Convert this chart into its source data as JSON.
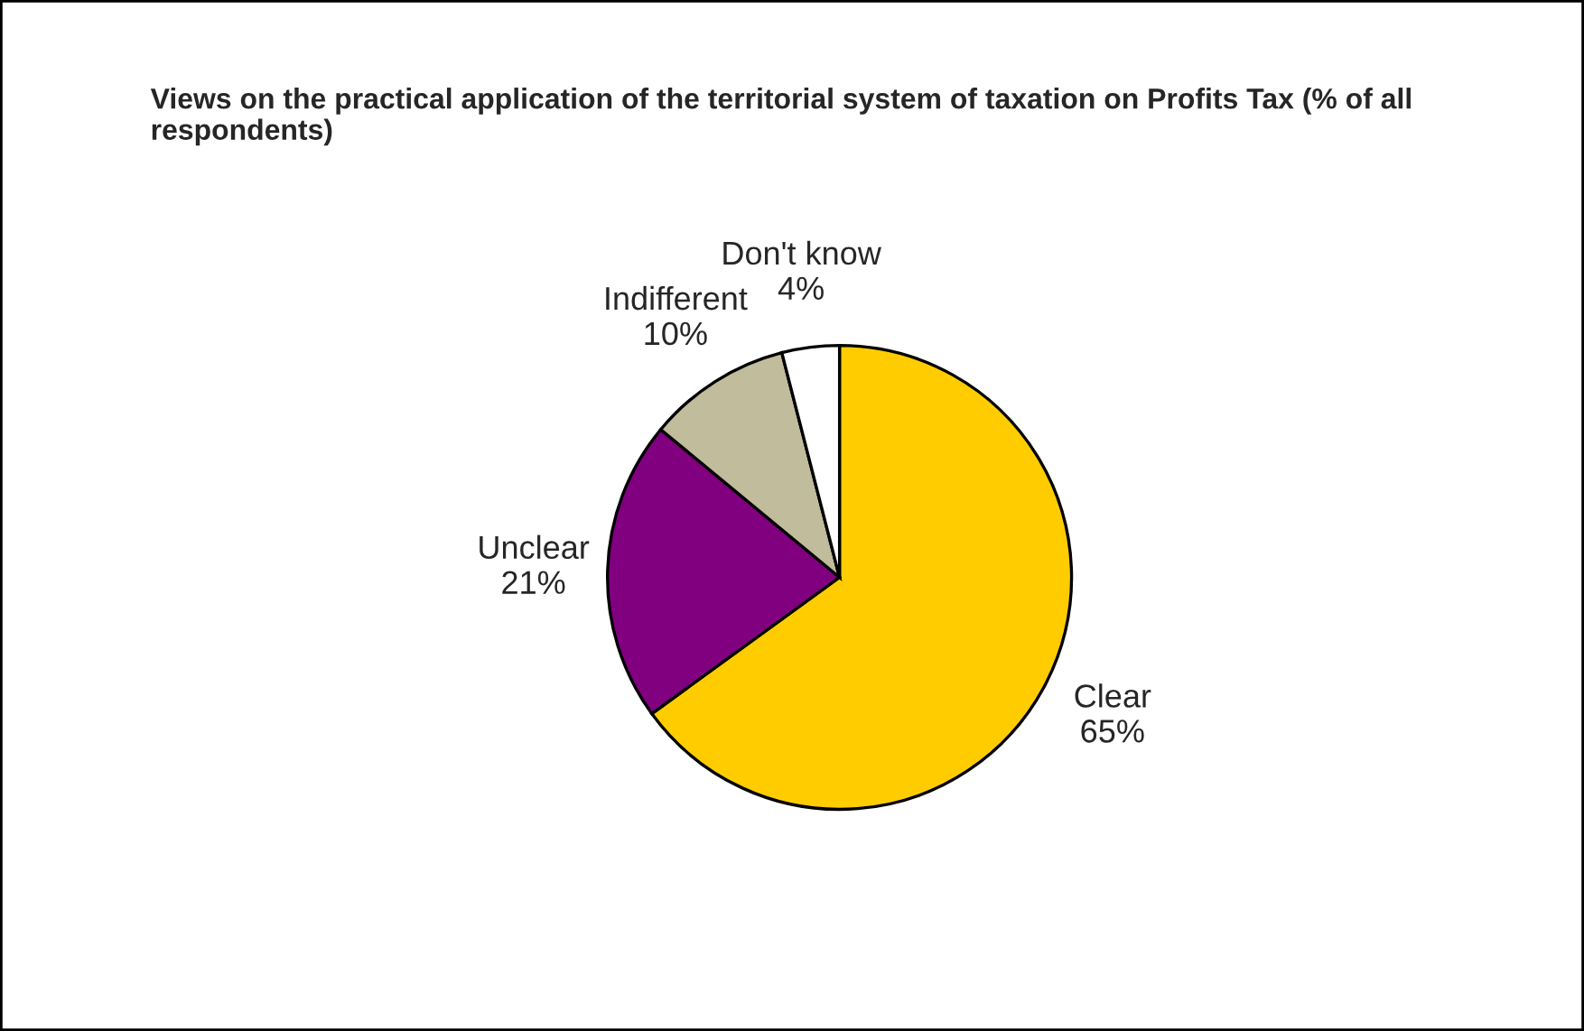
{
  "chart_data": {
    "type": "pie",
    "title": "Views on the practical application of the territorial system of taxation on Profits Tax (% of all respondents)",
    "categories": [
      "Clear",
      "Unclear",
      "Indifferent",
      "Don't know"
    ],
    "values": [
      65,
      21,
      10,
      4
    ],
    "value_labels": [
      "65%",
      "21%",
      "10%",
      "4%"
    ],
    "colors": [
      "#ffcc00",
      "#800080",
      "#c0bc9c",
      "#ffffff"
    ]
  }
}
